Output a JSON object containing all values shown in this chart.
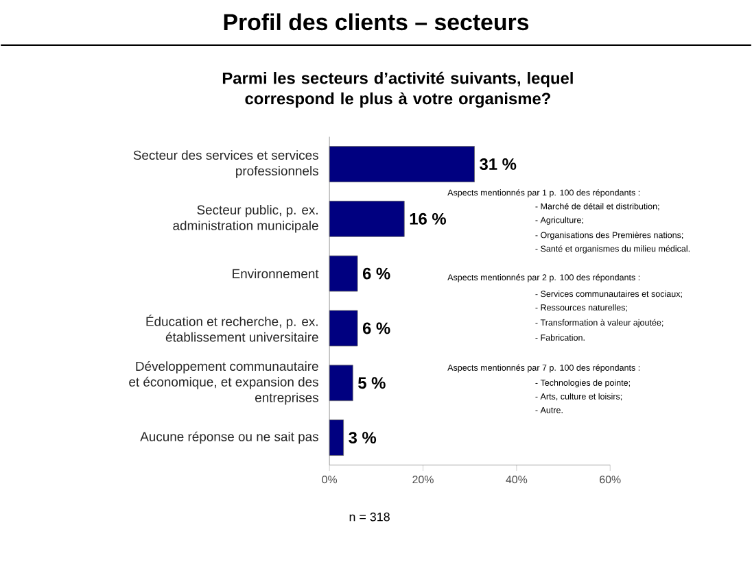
{
  "chart_data": {
    "type": "bar",
    "orientation": "horizontal",
    "title": "Profil des clients – secteurs",
    "subtitle": "Parmi les secteurs d’activité suivants, lequel correspond le plus à votre organisme?",
    "categories": [
      "Secteur des services et services professionnels",
      "Secteur public, p. ex. administration municipale",
      "Environnement",
      "Éducation et recherche, p. ex. établissement universitaire",
      "Développement communautaire et économique, et expansion des entreprises",
      "Aucune réponse ou ne sait pas"
    ],
    "values": [
      31,
      16,
      6,
      6,
      5,
      3
    ],
    "value_labels": [
      "31 %",
      "16 %",
      "6 %",
      "6 %",
      "5 %",
      "3 %"
    ],
    "color": "#000080",
    "xlim": [
      0,
      60
    ],
    "xticks": [
      {
        "value": 0,
        "label": "0%"
      },
      {
        "value": 20,
        "label": "20%"
      },
      {
        "value": 40,
        "label": "40%"
      },
      {
        "value": 60,
        "label": "60%"
      }
    ],
    "annotations": [
      "n = 318",
      "Aspects mentionnés par 1  p. 100 des répondants :",
      "- Marché de détail et distribution;",
      "- Agriculture;",
      "- Organisations des Premières nations;",
      "- Santé et organismes du milieu médical.",
      "Aspects mentionnés par 2  p. 100 des répondants :",
      "- Services communautaires et sociaux;",
      "- Ressources naturelles;",
      "- Transformation à valeur ajoutée;",
      "- Fabrication.",
      "Aspects mentionnés par 7 p. 100 des répondants :",
      "- Technologies de pointe;",
      "- Arts, culture et loisirs;",
      "- Autre."
    ]
  }
}
